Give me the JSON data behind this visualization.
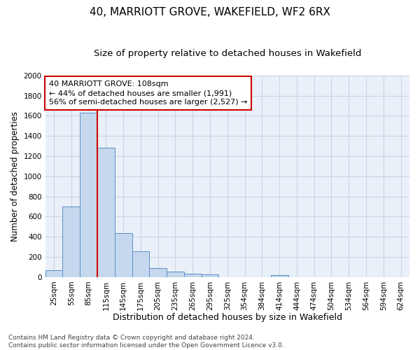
{
  "title": "40, MARRIOTT GROVE, WAKEFIELD, WF2 6RX",
  "subtitle": "Size of property relative to detached houses in Wakefield",
  "xlabel": "Distribution of detached houses by size in Wakefield",
  "ylabel": "Number of detached properties",
  "bar_labels": [
    "25sqm",
    "55sqm",
    "85sqm",
    "115sqm",
    "145sqm",
    "175sqm",
    "205sqm",
    "235sqm",
    "265sqm",
    "295sqm",
    "325sqm",
    "354sqm",
    "384sqm",
    "414sqm",
    "444sqm",
    "474sqm",
    "504sqm",
    "534sqm",
    "564sqm",
    "594sqm",
    "624sqm"
  ],
  "bar_values": [
    70,
    700,
    1630,
    1280,
    435,
    255,
    90,
    52,
    35,
    27,
    0,
    0,
    0,
    20,
    0,
    0,
    0,
    0,
    0,
    0,
    0
  ],
  "bar_color": "#c5d8ed",
  "bar_edge_color": "#5b8fc7",
  "grid_color": "#c8d4e8",
  "bg_color": "#eaf0f8",
  "marker_line_color": "#cc0000",
  "annotation_text": "40 MARRIOTT GROVE: 108sqm\n← 44% of detached houses are smaller (1,991)\n56% of semi-detached houses are larger (2,527) →",
  "annotation_box_color": "#ffffff",
  "annotation_box_edge": "#cc0000",
  "ylim": [
    0,
    2000
  ],
  "yticks": [
    0,
    200,
    400,
    600,
    800,
    1000,
    1200,
    1400,
    1600,
    1800,
    2000
  ],
  "footnote": "Contains HM Land Registry data © Crown copyright and database right 2024.\nContains public sector information licensed under the Open Government Licence v3.0.",
  "title_fontsize": 11,
  "subtitle_fontsize": 9.5,
  "xlabel_fontsize": 9,
  "ylabel_fontsize": 8.5,
  "tick_fontsize": 7.5,
  "annotation_fontsize": 8,
  "footnote_fontsize": 6.5
}
